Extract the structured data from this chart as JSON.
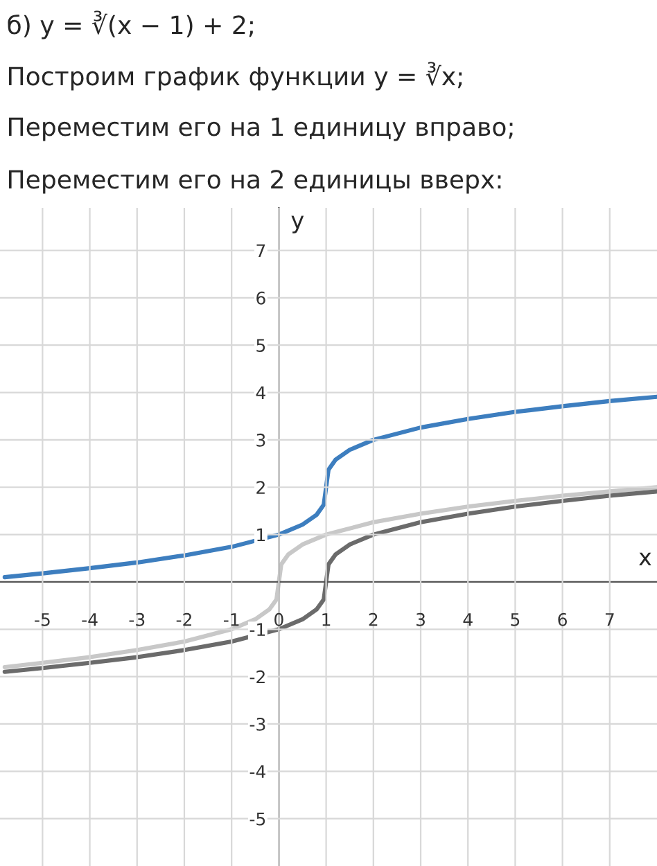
{
  "chart_data": {
    "type": "line",
    "title": "б) y = ∛(x − 1) + 2;",
    "annotations": [
      "Построим график функции y = ∛x;",
      "Переместим его на 1 единицу вправо;",
      "Переместим его на 2 единицы вверх:"
    ],
    "xlabel": "x",
    "ylabel": "y",
    "series": [
      {
        "color": "#c8c8c8",
        "x": [
          -5.8,
          -5,
          -4,
          -3,
          -2,
          -1,
          -0.5,
          -0.2,
          -0.05,
          0,
          0.05,
          0.2,
          0.5,
          1,
          2,
          3,
          4,
          5,
          6,
          7,
          8
        ],
        "values": [
          -1.8,
          -1.71,
          -1.59,
          -1.44,
          -1.26,
          -1,
          -0.79,
          -0.58,
          -0.37,
          0,
          0.37,
          0.58,
          0.79,
          1,
          1.26,
          1.44,
          1.59,
          1.71,
          1.82,
          1.91,
          2
        ]
      },
      {
        "color": "#6b6b6b",
        "x": [
          -5.8,
          -5,
          -4,
          -3,
          -2,
          -1,
          0,
          0.5,
          0.8,
          0.95,
          1,
          1.05,
          1.2,
          1.5,
          2,
          3,
          4,
          5,
          6,
          7,
          8
        ],
        "values": [
          -1.9,
          -1.82,
          -1.71,
          -1.59,
          -1.44,
          -1.26,
          -1,
          -0.79,
          -0.58,
          -0.37,
          0,
          0.37,
          0.58,
          0.79,
          1,
          1.26,
          1.44,
          1.59,
          1.71,
          1.82,
          1.91
        ]
      },
      {
        "color": "#3d7ebf",
        "x": [
          -5.8,
          -5,
          -4,
          -3,
          -2,
          -1,
          0,
          0.5,
          0.8,
          0.95,
          1,
          1.05,
          1.2,
          1.5,
          2,
          3,
          4,
          5,
          6,
          7,
          8
        ],
        "values": [
          0.1,
          0.18,
          0.29,
          0.41,
          0.56,
          0.74,
          1,
          1.21,
          1.42,
          1.63,
          2,
          2.37,
          2.58,
          2.79,
          3,
          3.26,
          3.44,
          3.59,
          3.71,
          3.82,
          3.91
        ]
      }
    ],
    "xlim": [
      -5.9,
      8
    ],
    "ylim": [
      -6,
      7.9
    ],
    "xticks": [
      -5,
      -4,
      -3,
      -2,
      -1,
      0,
      1,
      2,
      3,
      4,
      5,
      6,
      7
    ],
    "yticks": [
      -5,
      -4,
      -3,
      -2,
      -1,
      1,
      2,
      3,
      4,
      5,
      6,
      7
    ],
    "grid": true,
    "marker": "none",
    "line_style": "solid"
  }
}
